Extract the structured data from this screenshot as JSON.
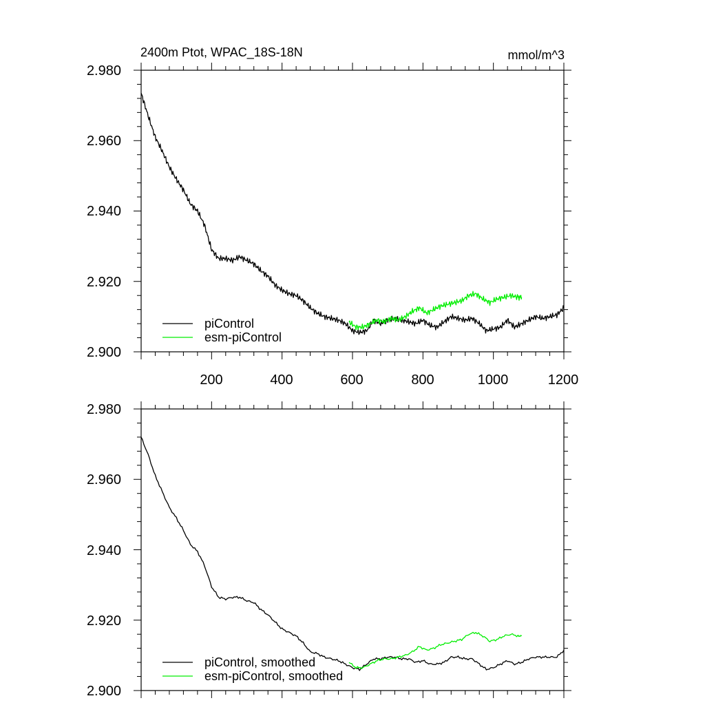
{
  "colors": {
    "black": "#000000",
    "green": "#00ee00"
  },
  "chart_data": [
    {
      "type": "line",
      "title": "2400m Ptot, WPAC_18S-18N",
      "units": "mmol/m^3",
      "xlim": [
        0,
        1200
      ],
      "ylim": [
        2.9,
        2.98
      ],
      "xticks": [
        200,
        400,
        600,
        800,
        1000,
        1200
      ],
      "xtick_labels": [
        "200",
        "400",
        "600",
        "800",
        "1000",
        "1200"
      ],
      "yticks": [
        2.9,
        2.92,
        2.94,
        2.96,
        2.98
      ],
      "ytick_labels": [
        "2.900",
        "2.920",
        "2.940",
        "2.960",
        "2.980"
      ],
      "legend_position": "bottom-left",
      "series": [
        {
          "name": "piControl",
          "color": "#000000",
          "x": [
            0,
            20,
            40,
            60,
            80,
            100,
            120,
            140,
            160,
            180,
            200,
            220,
            240,
            260,
            280,
            300,
            320,
            340,
            360,
            380,
            400,
            420,
            440,
            460,
            480,
            500,
            520,
            540,
            560,
            580,
            600,
            620,
            640,
            660,
            680,
            700,
            720,
            740,
            760,
            780,
            800,
            820,
            840,
            860,
            880,
            900,
            920,
            940,
            960,
            980,
            1000,
            1020,
            1040,
            1060,
            1080,
            1100,
            1120,
            1140,
            1160,
            1180,
            1200
          ],
          "values": [
            2.9735,
            2.967,
            2.961,
            2.957,
            2.9525,
            2.949,
            2.946,
            2.942,
            2.94,
            2.936,
            2.929,
            2.9265,
            2.9265,
            2.926,
            2.927,
            2.926,
            2.925,
            2.923,
            2.9215,
            2.919,
            2.9175,
            2.9165,
            2.916,
            2.9145,
            2.9125,
            2.911,
            2.91,
            2.9095,
            2.909,
            2.908,
            2.906,
            2.9055,
            2.906,
            2.909,
            2.908,
            2.909,
            2.9095,
            2.909,
            2.9085,
            2.908,
            2.909,
            2.9075,
            2.907,
            2.9085,
            2.91,
            2.9095,
            2.909,
            2.9095,
            2.908,
            2.906,
            2.9065,
            2.907,
            2.909,
            2.907,
            2.908,
            2.909,
            2.91,
            2.9095,
            2.91,
            2.9105,
            2.9125
          ]
        },
        {
          "name": "esm-piControl",
          "color": "#00ee00",
          "x": [
            590,
            610,
            630,
            650,
            670,
            690,
            710,
            730,
            750,
            770,
            790,
            810,
            830,
            850,
            870,
            890,
            910,
            930,
            950,
            970,
            990,
            1010,
            1030,
            1050,
            1070,
            1080
          ],
          "values": [
            2.9085,
            2.907,
            2.907,
            2.908,
            2.909,
            2.9085,
            2.9095,
            2.909,
            2.91,
            2.9115,
            2.9125,
            2.911,
            2.912,
            2.913,
            2.9135,
            2.914,
            2.9145,
            2.916,
            2.9165,
            2.915,
            2.914,
            2.915,
            2.9155,
            2.916,
            2.9155,
            2.9155
          ]
        }
      ]
    },
    {
      "type": "line",
      "title": "",
      "xlim": [
        0,
        1200
      ],
      "ylim": [
        2.9,
        2.98
      ],
      "yticks": [
        2.9,
        2.92,
        2.94,
        2.96,
        2.98
      ],
      "ytick_labels": [
        "2.900",
        "2.920",
        "2.940",
        "2.960",
        "2.980"
      ],
      "legend_position": "bottom-left",
      "series": [
        {
          "name": "piControl, smoothed",
          "color": "#000000",
          "x": [
            0,
            20,
            40,
            60,
            80,
            100,
            120,
            140,
            160,
            180,
            200,
            220,
            240,
            260,
            280,
            300,
            320,
            340,
            360,
            380,
            400,
            420,
            440,
            460,
            480,
            500,
            520,
            540,
            560,
            580,
            600,
            620,
            640,
            660,
            680,
            700,
            720,
            740,
            760,
            780,
            800,
            820,
            840,
            860,
            880,
            900,
            920,
            940,
            960,
            980,
            1000,
            1020,
            1040,
            1060,
            1080,
            1100,
            1120,
            1140,
            1160,
            1180,
            1200
          ],
          "values": [
            2.972,
            2.967,
            2.961,
            2.9565,
            2.952,
            2.949,
            2.9455,
            2.9415,
            2.9395,
            2.9355,
            2.9295,
            2.9265,
            2.926,
            2.9265,
            2.9265,
            2.9255,
            2.925,
            2.923,
            2.9215,
            2.9195,
            2.9175,
            2.9165,
            2.9155,
            2.9135,
            2.911,
            2.9105,
            2.9095,
            2.909,
            2.9085,
            2.9075,
            2.9065,
            2.906,
            2.9075,
            2.909,
            2.909,
            2.9095,
            2.9095,
            2.909,
            2.909,
            2.908,
            2.9085,
            2.9075,
            2.9075,
            2.908,
            2.9095,
            2.9095,
            2.909,
            2.909,
            2.9075,
            2.906,
            2.9065,
            2.9075,
            2.9085,
            2.9075,
            2.908,
            2.909,
            2.9095,
            2.9095,
            2.9095,
            2.9095,
            2.9115
          ]
        },
        {
          "name": "esm-piControl, smoothed",
          "color": "#00ee00",
          "x": [
            590,
            610,
            630,
            650,
            670,
            690,
            710,
            730,
            750,
            770,
            790,
            810,
            830,
            850,
            870,
            890,
            910,
            930,
            950,
            970,
            990,
            1010,
            1030,
            1050,
            1070,
            1080
          ],
          "values": [
            2.908,
            2.9065,
            2.9065,
            2.9075,
            2.9085,
            2.909,
            2.909,
            2.9095,
            2.91,
            2.911,
            2.9125,
            2.9115,
            2.912,
            2.913,
            2.9135,
            2.914,
            2.9145,
            2.916,
            2.9165,
            2.9155,
            2.914,
            2.9145,
            2.9155,
            2.916,
            2.9155,
            2.9155
          ]
        }
      ]
    }
  ]
}
